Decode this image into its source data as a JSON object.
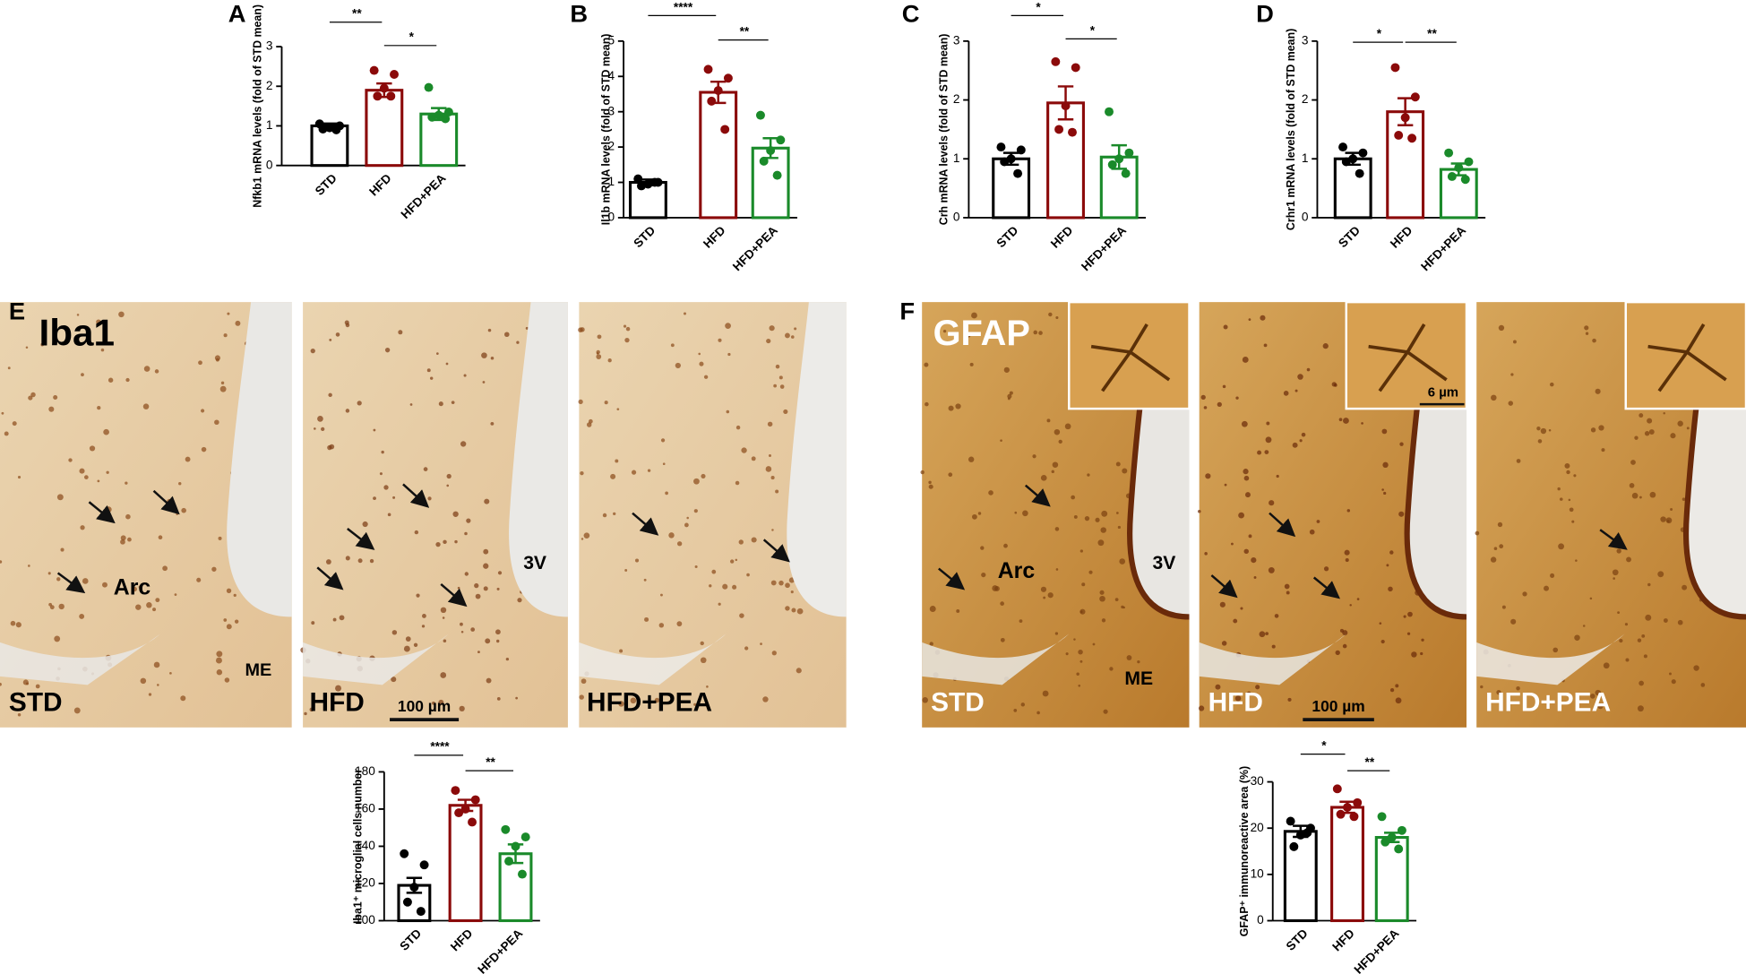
{
  "chart_data": [
    {
      "type": "bar",
      "panel": "A",
      "ylabel": "Nfkb1 mRNA levels (fold of STD mean)",
      "categories": [
        "STD",
        "HFD",
        "HFD+PEA"
      ],
      "colors": [
        "#000000",
        "#8b0a0a",
        "#1a8a2a"
      ],
      "values": [
        1.0,
        1.9,
        1.3
      ],
      "errors": [
        0.06,
        0.17,
        0.15
      ],
      "points": [
        [
          1.05,
          1.0,
          0.95,
          0.92,
          0.9
        ],
        [
          2.4,
          2.3,
          1.95,
          1.75,
          1.75
        ],
        [
          1.97,
          1.35,
          1.27,
          1.22,
          1.18
        ]
      ],
      "ylim": [
        0,
        3
      ],
      "yticks": [
        0,
        1,
        2,
        3
      ],
      "comparisons": [
        {
          "pair": [
            "STD",
            "HFD"
          ],
          "label": "**"
        },
        {
          "pair": [
            "HFD",
            "HFD+PEA"
          ],
          "label": "*"
        }
      ]
    },
    {
      "type": "bar",
      "panel": "B",
      "ylabel": "Il1b mRNA levels (fold of STD mean)",
      "categories": [
        "STD",
        "HFD",
        "HFD+PEA"
      ],
      "colors": [
        "#000000",
        "#8b0a0a",
        "#1a8a2a"
      ],
      "values": [
        1.0,
        3.55,
        1.97
      ],
      "errors": [
        0.08,
        0.3,
        0.28
      ],
      "points": [
        [
          1.1,
          1.0,
          0.95,
          0.9,
          1.0
        ],
        [
          4.2,
          3.95,
          3.6,
          3.3,
          2.5
        ],
        [
          2.9,
          2.2,
          1.9,
          1.6,
          1.2
        ]
      ],
      "ylim": [
        0,
        5
      ],
      "yticks": [
        0,
        1,
        2,
        3,
        4,
        5
      ],
      "comparisons": [
        {
          "pair": [
            "STD",
            "HFD"
          ],
          "label": "****"
        },
        {
          "pair": [
            "HFD",
            "HFD+PEA"
          ],
          "label": "**"
        }
      ]
    },
    {
      "type": "bar",
      "panel": "C",
      "ylabel": "Crh mRNA levels (fold of STD mean)",
      "categories": [
        "STD",
        "HFD",
        "HFD+PEA"
      ],
      "colors": [
        "#000000",
        "#8b0a0a",
        "#1a8a2a"
      ],
      "values": [
        1.0,
        1.95,
        1.03
      ],
      "errors": [
        0.1,
        0.28,
        0.2
      ],
      "points": [
        [
          1.2,
          1.15,
          1.0,
          0.95,
          0.75
        ],
        [
          2.65,
          2.55,
          1.9,
          1.5,
          1.45
        ],
        [
          1.8,
          1.1,
          1.0,
          0.9,
          0.75
        ]
      ],
      "ylim": [
        0,
        3
      ],
      "yticks": [
        0,
        1,
        2,
        3
      ],
      "comparisons": [
        {
          "pair": [
            "STD",
            "HFD"
          ],
          "label": "*"
        },
        {
          "pair": [
            "HFD",
            "HFD+PEA"
          ],
          "label": "*"
        }
      ]
    },
    {
      "type": "bar",
      "panel": "D",
      "ylabel": "Crhr1 mRNA levels (fold of STD mean)",
      "categories": [
        "STD",
        "HFD",
        "HFD+PEA"
      ],
      "colors": [
        "#000000",
        "#8b0a0a",
        "#1a8a2a"
      ],
      "values": [
        1.0,
        1.8,
        0.82
      ],
      "errors": [
        0.1,
        0.23,
        0.1
      ],
      "points": [
        [
          1.2,
          1.1,
          1.0,
          0.95,
          0.75
        ],
        [
          2.55,
          2.05,
          1.7,
          1.4,
          1.35
        ],
        [
          1.1,
          0.95,
          0.85,
          0.7,
          0.65
        ]
      ],
      "ylim": [
        0,
        3
      ],
      "yticks": [
        0,
        1,
        2,
        3
      ],
      "comparisons": [
        {
          "pair": [
            "STD",
            "HFD"
          ],
          "label": "*"
        },
        {
          "pair": [
            "HFD",
            "HFD+PEA"
          ],
          "label": "**"
        }
      ]
    },
    {
      "type": "bar",
      "ylabel": "Iba1⁺ microglial cells number",
      "categories": [
        "STD",
        "HFD",
        "HFD+PEA"
      ],
      "colors": [
        "#000000",
        "#8b0a0a",
        "#1a8a2a"
      ],
      "values": [
        119,
        162,
        136
      ],
      "errors": [
        4,
        3,
        5
      ],
      "points": [
        [
          136,
          130,
          118,
          110,
          105
        ],
        [
          170,
          165,
          160,
          158,
          153
        ],
        [
          149,
          145,
          140,
          132,
          125
        ]
      ],
      "ylim": [
        100,
        180
      ],
      "yticks": [
        100,
        120,
        140,
        160,
        180
      ],
      "comparisons": [
        {
          "pair": [
            "STD",
            "HFD"
          ],
          "label": "****"
        },
        {
          "pair": [
            "HFD",
            "HFD+PEA"
          ],
          "label": "**"
        }
      ]
    },
    {
      "type": "bar",
      "ylabel": "GFAP⁺ immunoreactive area (%)",
      "categories": [
        "STD",
        "HFD",
        "HFD+PEA"
      ],
      "colors": [
        "#000000",
        "#8b0a0a",
        "#1a8a2a"
      ],
      "values": [
        19.3,
        24.5,
        18
      ],
      "errors": [
        1.2,
        1.2,
        1
      ],
      "points": [
        [
          21.5,
          20,
          18.5,
          16,
          19
        ],
        [
          28.5,
          25.5,
          24.5,
          23,
          22.5
        ],
        [
          22.5,
          19.5,
          18,
          17,
          15.5
        ]
      ],
      "ylim": [
        0,
        30
      ],
      "yticks": [
        0,
        10,
        20,
        30
      ],
      "comparisons": [
        {
          "pair": [
            "STD",
            "HFD"
          ],
          "label": "*"
        },
        {
          "pair": [
            "HFD",
            "HFD+PEA"
          ],
          "label": "**"
        }
      ]
    }
  ],
  "micrographs": {
    "E": {
      "panel": "E",
      "stain": "Iba1",
      "regions": [
        "Arc",
        "ME",
        "3V"
      ],
      "groups": [
        "STD",
        "HFD",
        "HFD+PEA"
      ],
      "scale_bar": "100 µm"
    },
    "F": {
      "panel": "F",
      "stain": "GFAP",
      "regions": [
        "Arc",
        "ME",
        "3V"
      ],
      "groups": [
        "STD",
        "HFD",
        "HFD+PEA"
      ],
      "scale_bar": "100 µm",
      "inset_scale_bar": "6 µm"
    }
  }
}
